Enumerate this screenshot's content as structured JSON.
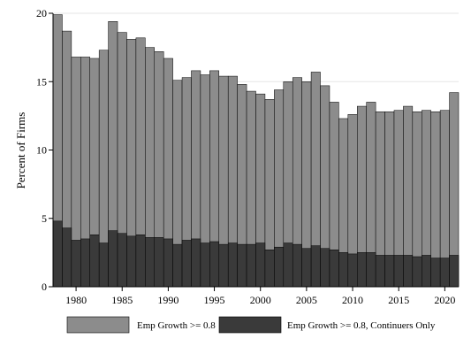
{
  "chart_data": {
    "type": "bar",
    "stacking": "overlay",
    "ylabel": "Percent of Firms",
    "xlabel": "",
    "ylim": [
      0,
      20
    ],
    "xlim": [
      1977.5,
      2021.5
    ],
    "yticks": [
      0,
      5,
      10,
      15,
      20
    ],
    "xticks": [
      1980,
      1985,
      1990,
      1995,
      2000,
      2005,
      2010,
      2015,
      2020
    ],
    "grid": true,
    "legend_position": "bottom",
    "x": [
      1978,
      1979,
      1980,
      1981,
      1982,
      1983,
      1984,
      1985,
      1986,
      1987,
      1988,
      1989,
      1990,
      1991,
      1992,
      1993,
      1994,
      1995,
      1996,
      1997,
      1998,
      1999,
      2000,
      2001,
      2002,
      2003,
      2004,
      2005,
      2006,
      2007,
      2008,
      2009,
      2010,
      2011,
      2012,
      2013,
      2014,
      2015,
      2016,
      2017,
      2018,
      2019,
      2020,
      2021
    ],
    "series": [
      {
        "name": "Emp Growth >= 0.8",
        "color": "#8c8c8c",
        "values": [
          19.9,
          18.7,
          16.8,
          16.8,
          16.7,
          17.3,
          19.4,
          18.6,
          18.1,
          18.2,
          17.5,
          17.2,
          16.7,
          15.1,
          15.3,
          15.8,
          15.5,
          15.8,
          15.4,
          15.4,
          14.8,
          14.3,
          14.1,
          13.7,
          14.4,
          15.0,
          15.3,
          15.0,
          15.7,
          14.7,
          13.5,
          12.3,
          12.6,
          13.2,
          13.5,
          12.8,
          12.8,
          12.9,
          13.2,
          12.8,
          12.9,
          12.8,
          12.9,
          14.2
        ]
      },
      {
        "name": "Emp Growth >= 0.8, Continuers Only",
        "color": "#3a3a3a",
        "values": [
          4.8,
          4.3,
          3.4,
          3.5,
          3.8,
          3.2,
          4.1,
          3.9,
          3.7,
          3.8,
          3.6,
          3.6,
          3.5,
          3.1,
          3.4,
          3.5,
          3.2,
          3.3,
          3.1,
          3.2,
          3.1,
          3.1,
          3.2,
          2.7,
          2.9,
          3.2,
          3.1,
          2.8,
          3.0,
          2.8,
          2.7,
          2.5,
          2.4,
          2.5,
          2.5,
          2.3,
          2.3,
          2.3,
          2.3,
          2.2,
          2.3,
          2.1,
          2.1,
          2.3
        ]
      }
    ]
  }
}
